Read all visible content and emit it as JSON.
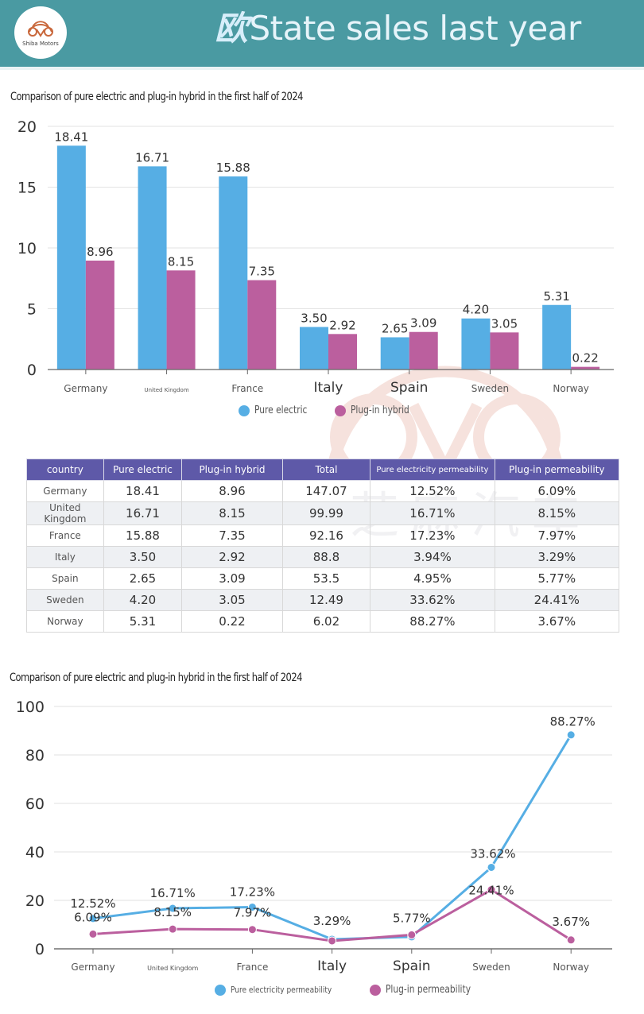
{
  "header": {
    "logo_text": "Shiba Motors",
    "title_cjk": "欧",
    "title": "State sales last year"
  },
  "colors": {
    "header_bg": "#4a9aa2",
    "pure_electric": "#56aee4",
    "plug_in_hybrid": "#bb5f9e",
    "table_header": "#5e59a8"
  },
  "watermark_text": "芝麻汽车",
  "chart_data": [
    {
      "type": "bar",
      "title": "Comparison of pure electric and plug-in hybrid in the first half of 2024",
      "categories": [
        "Germany",
        "United Kingdom",
        "France",
        "Italy",
        "Spain",
        "Sweden",
        "Norway"
      ],
      "series": [
        {
          "name": "Pure electric",
          "color": "#56aee4",
          "values": [
            18.41,
            16.71,
            15.88,
            3.5,
            2.65,
            4.2,
            5.31
          ],
          "labels": [
            "18.41",
            "16.71",
            "15.88",
            "3.50",
            "2.65",
            "4.20",
            "5.31"
          ]
        },
        {
          "name": "Plug-in hybrid",
          "color": "#bb5f9e",
          "values": [
            8.96,
            8.15,
            7.35,
            2.92,
            3.09,
            3.05,
            0.22
          ],
          "labels": [
            "8.96",
            "8.15",
            "7.35",
            "2.92",
            "3.09",
            "3.05",
            "0.22"
          ]
        }
      ],
      "yticks": [
        0,
        5,
        10,
        15,
        20
      ],
      "ylim": [
        0,
        20
      ],
      "xlabel": "",
      "ylabel": "",
      "grid": true,
      "legend": "bottom-center"
    },
    {
      "type": "line",
      "title": "Comparison of pure electric and plug-in hybrid in the first half of 2024",
      "categories": [
        "Germany",
        "United Kingdom",
        "France",
        "Italy",
        "Spain",
        "Sweden",
        "Norway"
      ],
      "series": [
        {
          "name": "Pure electricity permeability",
          "color": "#56aee4",
          "values": [
            12.52,
            16.71,
            17.23,
            3.94,
            4.95,
            33.62,
            88.27
          ],
          "labels": [
            "12.52%",
            "16.71%",
            "17.23%",
            "",
            "",
            "33.62%",
            "88.27%"
          ]
        },
        {
          "name": "Plug-in permeability",
          "color": "#bb5f9e",
          "values": [
            6.09,
            8.15,
            7.97,
            3.29,
            5.77,
            24.41,
            3.67
          ],
          "labels": [
            "6.09%",
            "8.15%",
            "7.97%",
            "3.29%",
            "5.77%",
            "24.41%",
            "3.67%"
          ]
        }
      ],
      "yticks": [
        0,
        20,
        40,
        60,
        80,
        100
      ],
      "ylim": [
        0,
        100
      ],
      "xlabel": "",
      "ylabel": "",
      "grid": true,
      "legend": "bottom-center"
    }
  ],
  "table": {
    "headers": [
      "country",
      "Pure electric",
      "Plug-in hybrid",
      "Total",
      "Pure electricity permeability",
      "Plug-in permeability"
    ],
    "rows": [
      [
        "Germany",
        "18.41",
        "8.96",
        "147.07",
        "12.52%",
        "6.09%"
      ],
      [
        "United Kingdom",
        "16.71",
        "8.15",
        "99.99",
        "16.71%",
        "8.15%"
      ],
      [
        "France",
        "15.88",
        "7.35",
        "92.16",
        "17.23%",
        "7.97%"
      ],
      [
        "Italy",
        "3.50",
        "2.92",
        "88.8",
        "3.94%",
        "3.29%"
      ],
      [
        "Spain",
        "2.65",
        "3.09",
        "53.5",
        "4.95%",
        "5.77%"
      ],
      [
        "Sweden",
        "4.20",
        "3.05",
        "12.49",
        "33.62%",
        "24.41%"
      ],
      [
        "Norway",
        "5.31",
        "0.22",
        "6.02",
        "88.27%",
        "3.67%"
      ]
    ]
  }
}
